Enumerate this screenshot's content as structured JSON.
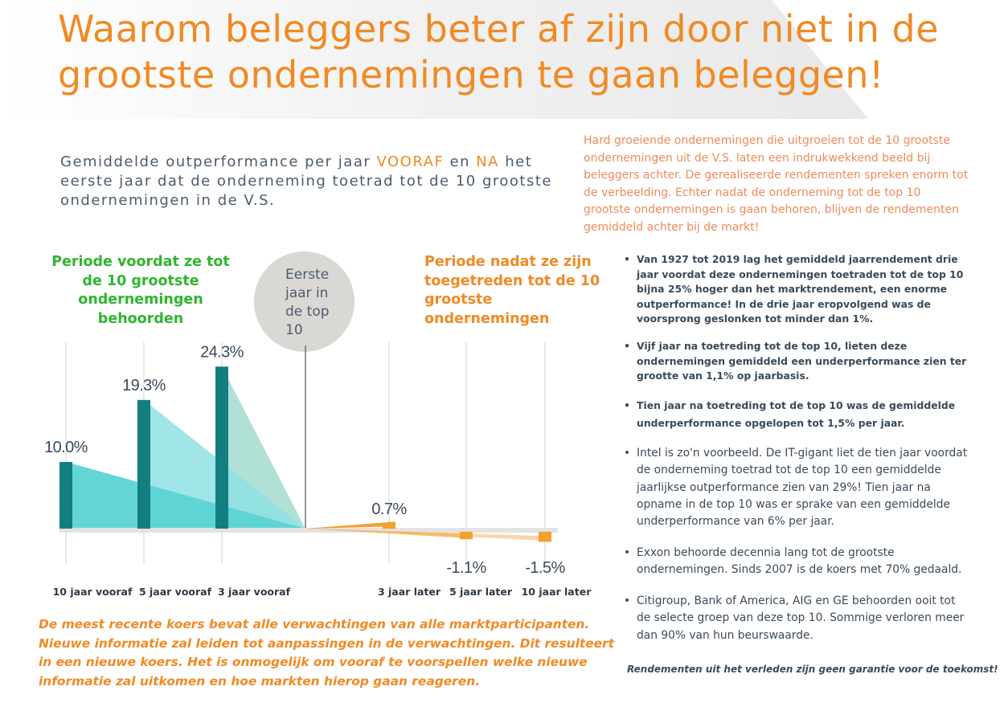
{
  "title": "Waarom beleggers beter af zijn door niet in de grootste ondernemingen te gaan beleggen!",
  "subtitle": {
    "part1": "Gemiddelde outperformance per jaar ",
    "hl1": "VOORAF",
    "part2": " en ",
    "hl2": "NA",
    "part3": " het eerste jaar dat de onderneming toetrad tot de 10 grootste ondernemingen in de V.S."
  },
  "intro": "Hard groeiende ondernemingen die uitgroeien tot de 10 grootste ondernemingen uit de V.S. laten een indrukwekkend beeld bij beleggers achter. De gerealiseerde rendementen spreken enorm tot de verbeelding. Echter nadat de onderneming tot de top 10 grootste ondernemingen is gaan behoren, blijven de rendementen gemiddeld achter bij de markt!",
  "bullets": [
    "Van 1927 tot 2019 lag het gemiddeld jaarrendement drie jaar voordat deze ondernemingen toetraden tot de top 10 bijna 25% hoger dan het marktrendement, een enorme outperformance! In de drie jaar eropvolgend was de voorsprong geslonken tot minder dan 1%.",
    "Vijf jaar na toetreding tot de top 10, lieten deze ondernemingen gemiddeld een underperformance zien ter grootte van 1,1% op jaarbasis.",
    "Tien jaar na toetreding tot de top 10 was de gemiddelde underperformance opgelopen tot 1,5% per jaar.",
    "Intel is zo'n voorbeeld. De IT-gigant liet de tien jaar voordat de onderneming toetrad tot de top 10 een gemiddelde jaarlijkse outperformance zien van 29%! Tien jaar na opname in de top 10 was er sprake van een gemiddelde underperformance van 6% per jaar.",
    "Exxon behoorde decennia lang tot de grootste ondernemingen. Sinds 2007 is de koers met 70% gedaald.",
    "Citigroup, Bank of America, AIG en GE behoorden ooit tot de selecte groep van deze top 10. Sommige verloren meer dan 90% van hun beurswaarde."
  ],
  "disclaimer": "Rendementen uit het verleden zijn geen garantie voor de toekomst!",
  "footer_note": "De meest recente koers bevat alle verwachtingen van alle marktparticipanten. Nieuwe informatie zal leiden tot aanpassingen in de verwachtingen. Dit resulteert in een nieuwe koers. Het is onmogelijk om vooraf te voorspellen welke nieuwe informatie zal uitkomen en hoe markten hierop gaan reageren.",
  "colors": {
    "accent_orange": "#f08a24",
    "before_green": "#2fb52f",
    "bar_teal": "#137e80",
    "after_orange": "#f5a02e"
  },
  "chart_data": {
    "type": "bar",
    "categories": [
      "10 jaar vooraf",
      "5 jaar vooraf",
      "3 jaar vooraf",
      "3 jaar later",
      "5 jaar later",
      "10 jaar later"
    ],
    "values": [
      10.0,
      19.3,
      24.3,
      0.7,
      -1.1,
      -1.5
    ],
    "value_labels": [
      "10.0%",
      "19.3%",
      "24.3%",
      "0.7%",
      "-1.1%",
      "-1.5%"
    ],
    "period_before_label": "Periode voordat ze tot de 10 grootste ondernemingen behoorden",
    "period_after_label": "Periode nadat ze zijn toegetreden tot de 10 grootste ondernemingen",
    "center_label": "Eerste jaar in de top 10",
    "ylim": [
      -2,
      25
    ]
  }
}
